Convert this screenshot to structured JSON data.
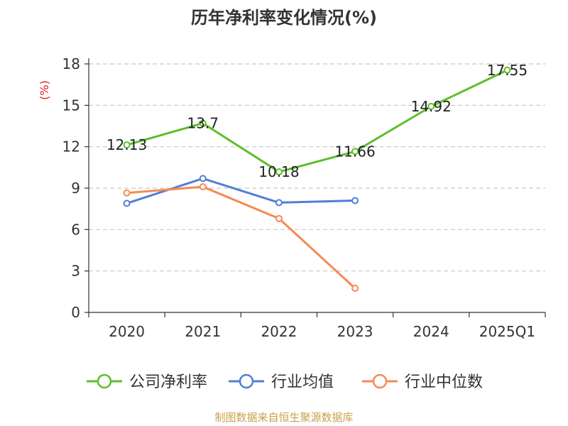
{
  "chart_data": {
    "type": "line",
    "title": "历年净利率变化情况(%)",
    "ylabel": "(%)",
    "xlabel": "",
    "categories": [
      "2020",
      "2021",
      "2022",
      "2023",
      "2024",
      "2025Q1"
    ],
    "yticks": [
      0,
      3,
      6,
      9,
      12,
      15,
      18
    ],
    "ylim": [
      0,
      18
    ],
    "grid": true,
    "legend_position": "bottom",
    "series": [
      {
        "name": "公司净利率",
        "color": "#5cbf2a",
        "values": [
          12.13,
          13.7,
          10.18,
          11.66,
          14.92,
          17.55
        ],
        "labels": [
          "12.13",
          "13.7",
          "10.18",
          "11.66",
          "14.92",
          "17.55"
        ]
      },
      {
        "name": "行业均值",
        "color": "#4f7fd6",
        "values": [
          7.9,
          9.7,
          7.95,
          8.1,
          null,
          null
        ]
      },
      {
        "name": "行业中位数",
        "color": "#f58a55",
        "values": [
          8.65,
          9.1,
          6.8,
          1.75,
          null,
          null
        ]
      }
    ]
  },
  "source_text": "制图数据来自恒生聚源数据库"
}
